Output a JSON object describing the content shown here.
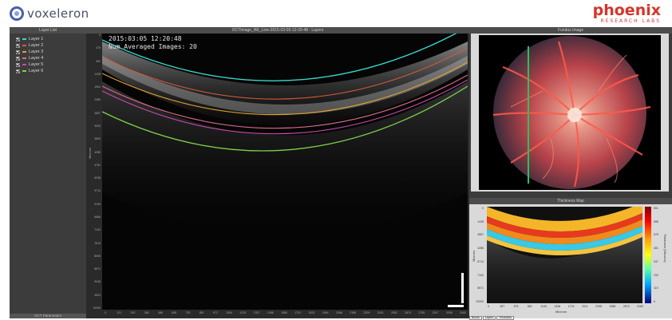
{
  "header": {
    "brand_left": "voxeleron",
    "brand_right": "phoenix",
    "brand_right_sub": "RESEARCH LABS"
  },
  "layer_panel": {
    "title": "Layer List",
    "bottom_title": "OCT Parameters",
    "layers": [
      {
        "label": "Layer 1",
        "color": "#37d6c8"
      },
      {
        "label": "Layer 2",
        "color": "#d05a3a"
      },
      {
        "label": "Layer 3",
        "color": "#e0a030"
      },
      {
        "label": "Layer 4",
        "color": "#d86a8a"
      },
      {
        "label": "Layer 5",
        "color": "#c84aa8"
      },
      {
        "label": "Layer 6",
        "color": "#7ed04a"
      }
    ]
  },
  "oct": {
    "title": "OCTImage_RE_Line-2015-03-05-12-20-48 - Layers",
    "stamp_date": "2015:03:05 12:20:48",
    "stamp_avg": "Num Averaged Images: 20",
    "y_axis_title": "Microns",
    "y_ticks": [
      "0",
      "476",
      "952",
      "1428",
      "1904",
      "2380",
      "2857",
      "3333",
      "3809",
      "4285",
      "4761",
      "5238",
      "5714",
      "6190",
      "6666",
      "7142",
      "7619",
      "8095",
      "8571",
      "9048",
      "9524",
      "10000"
    ],
    "x_ticks": [
      "0",
      "121",
      "243",
      "364",
      "486",
      "608",
      "729",
      "851",
      "972",
      "1094",
      "1215",
      "1337",
      "1458",
      "1580",
      "1701",
      "1823",
      "1944",
      "2066",
      "2188",
      "2309",
      "2431",
      "2552",
      "2674",
      "2795",
      "2917",
      "3038",
      "3160"
    ]
  },
  "fundus": {
    "title": "Fundus Image"
  },
  "thickness": {
    "title": "Thickness Map",
    "y_axis_title": "Microns",
    "x_axis_title": "Microns",
    "y_ticks": [
      "0",
      "1428",
      "2857",
      "4285",
      "5714",
      "7142",
      "8571",
      "10000"
    ],
    "x_ticks": [
      "0",
      "287",
      "575",
      "862",
      "1149",
      "1436",
      "1724",
      "2011",
      "2298",
      "2585",
      "2873",
      "3160"
    ],
    "colorbar_title": "Thickness (Microns)",
    "colorbar_ticks": [
      "801",
      "688",
      "575",
      "461",
      "347",
      "233",
      "119",
      "6"
    ]
  },
  "bottom_tabs": [
    "Bscan",
    "Layers",
    "Thickness"
  ]
}
